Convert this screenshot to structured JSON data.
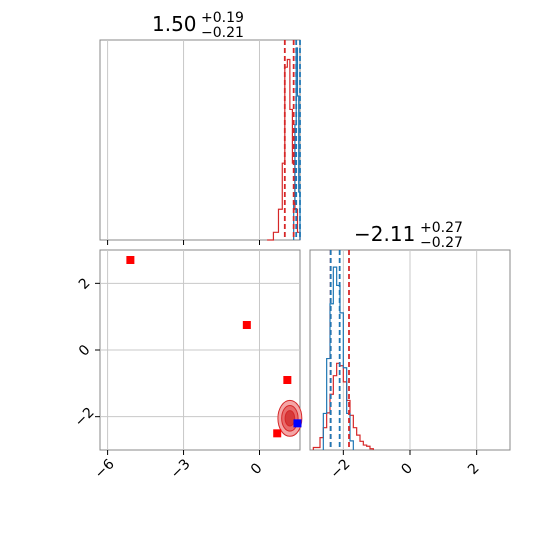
{
  "chart_data": {
    "type": "corner",
    "params": [
      {
        "value": "1.50",
        "plus": "+0.19",
        "minus": "−0.21"
      },
      {
        "value": "−2.11",
        "plus": "+0.27",
        "minus": "−0.27"
      }
    ],
    "x_range_param1": [
      -6.3,
      1.6
    ],
    "x_range_param2": [
      -3.0,
      3.0
    ],
    "y_range_param2": [
      -3.0,
      3.0
    ],
    "x_ticks_param1": [
      -6,
      -3,
      0
    ],
    "x_tick_labels_param1": [
      "−6",
      "−3",
      "0"
    ],
    "x_ticks_param2": [
      -2,
      0,
      2
    ],
    "x_tick_labels_param2": [
      "−2",
      "0",
      "2"
    ],
    "y_ticks_param2": [
      2,
      0,
      -2
    ],
    "y_tick_labels_param2": [
      "2",
      "0",
      "−2"
    ],
    "grid": true,
    "colors": {
      "red": "#d62728",
      "blue": "#1f77b4",
      "marker_blue": "#0000ff",
      "marker_red": "#ff0000"
    },
    "scatter_red": [
      [
        -5.1,
        2.7
      ],
      [
        -0.5,
        0.75
      ],
      [
        1.1,
        -0.9
      ],
      [
        0.7,
        -2.5
      ]
    ],
    "scatter_blue": [
      [
        1.5,
        -2.2
      ]
    ],
    "contour_center": [
      1.2,
      -2.05
    ],
    "contour_radii": [
      0.45,
      0.55
    ],
    "hist1_red": {
      "edges": [
        0.3,
        0.55,
        0.75,
        0.9,
        1.0,
        1.1,
        1.2,
        1.3,
        1.4,
        1.5,
        1.6
      ],
      "values": [
        0.0,
        0.02,
        0.08,
        0.2,
        0.45,
        0.47,
        0.34,
        0.2,
        0.08,
        0.02
      ]
    },
    "hist1_blue": {
      "edges": [
        1.35,
        1.4,
        1.45,
        1.5,
        1.55,
        1.6
      ],
      "values": [
        0.2,
        0.6,
        1.0,
        0.75,
        0.25
      ]
    },
    "hist1_red_lines": [
      1.0,
      1.35
    ],
    "hist1_blue_lines": [
      1.45,
      1.6
    ],
    "hist2_red": {
      "edges": [
        -2.9,
        -2.7,
        -2.6,
        -2.5,
        -2.4,
        -2.3,
        -2.2,
        -2.1,
        -2.0,
        -1.9,
        -1.8,
        -1.7,
        -1.6,
        -1.5,
        -1.4,
        -1.3,
        -1.2,
        -1.1
      ],
      "values": [
        0.02,
        0.1,
        0.18,
        0.3,
        0.45,
        0.6,
        0.7,
        0.68,
        0.55,
        0.4,
        0.28,
        0.18,
        0.12,
        0.07,
        0.04,
        0.03,
        0.01
      ]
    },
    "hist2_blue": {
      "edges": [
        -2.6,
        -2.5,
        -2.4,
        -2.3,
        -2.2,
        -2.1,
        -2.0,
        -1.9,
        -1.8,
        -1.7
      ],
      "values": [
        0.2,
        0.5,
        0.8,
        1.0,
        0.9,
        0.75,
        0.45,
        0.2,
        0.05
      ]
    },
    "hist2_red_lines": [
      -2.38,
      -1.83
    ],
    "hist2_blue_lines": [
      -2.38,
      -2.11
    ]
  }
}
